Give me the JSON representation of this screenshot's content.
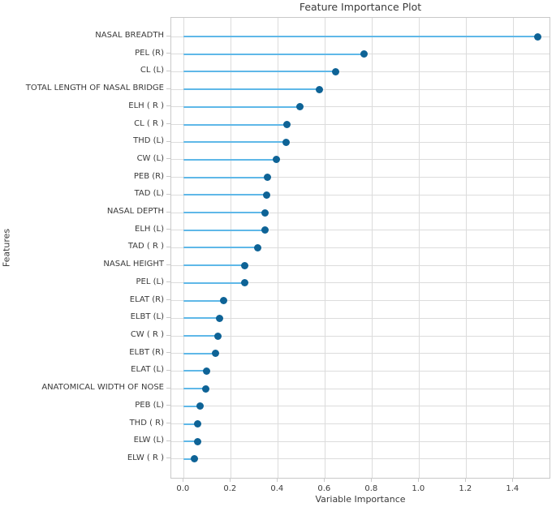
{
  "title": "Feature Importance Plot",
  "axes": {
    "xlabel": "Variable Importance",
    "ylabel": "Features"
  },
  "chart_data": {
    "type": "bar",
    "style": "lollipop",
    "orientation": "horizontal",
    "title": "Feature Importance Plot",
    "xlabel": "Variable Importance",
    "ylabel": "Features",
    "categories": [
      "NASAL BREADTH",
      "PEL (R)",
      "CL (L)",
      "TOTAL LENGTH OF NASAL BRIDGE",
      "ELH ( R )",
      "CL ( R )",
      "THD (L)",
      "CW (L)",
      "PEB (R)",
      "TAD (L)",
      "NASAL DEPTH",
      "ELH (L)",
      "TAD ( R )",
      "NASAL HEIGHT",
      "PEL (L)",
      "ELAT (R)",
      "ELBT (L)",
      "CW ( R )",
      "ELBT (R)",
      "ELAT (L)",
      "ANATOMICAL WIDTH OF NOSE",
      "PEB (L)",
      "THD ( R)",
      "ELW (L)",
      "ELW ( R )"
    ],
    "values": [
      1.505,
      0.765,
      0.644,
      0.575,
      0.494,
      0.439,
      0.436,
      0.393,
      0.355,
      0.351,
      0.347,
      0.344,
      0.316,
      0.261,
      0.258,
      0.171,
      0.151,
      0.146,
      0.136,
      0.098,
      0.093,
      0.071,
      0.061,
      0.06,
      0.044
    ],
    "x_ticks": [
      0.0,
      0.2,
      0.4,
      0.6,
      0.8,
      1.0,
      1.2,
      1.4
    ],
    "x_tick_labels": [
      "0.0",
      "0.2",
      "0.4",
      "0.6",
      "0.8",
      "1.0",
      "1.2",
      "1.4"
    ],
    "xlim": [
      -0.053,
      1.561
    ],
    "grid": true,
    "legend": false,
    "colors": {
      "stem": "#5fb8e8",
      "dot": "#0e6396",
      "grid": "#dcdcdc",
      "border": "#c9c9c9",
      "text": "#3a3a3a"
    }
  }
}
